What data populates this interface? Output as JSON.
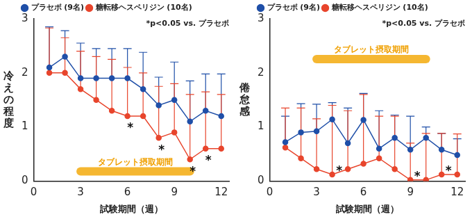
{
  "chart_data": [
    {
      "type": "line",
      "y_label": "冷えの程度",
      "x_label": "試験期間（週）",
      "note": "*p<0.05 vs. プラセボ",
      "x": [
        1,
        2,
        3,
        4,
        5,
        6,
        7,
        8,
        9,
        10,
        11,
        12
      ],
      "xlim": [
        0,
        12.5
      ],
      "xticks": [
        0,
        3,
        6,
        9,
        12
      ],
      "ylim": [
        0,
        3
      ],
      "yticks": [
        0,
        1,
        2,
        3
      ],
      "grid": false,
      "legend": "top-left",
      "series": [
        {
          "name": "プラセボ (9名)",
          "color": "#1f4fa8",
          "marker": "circle",
          "values": [
            2.1,
            2.3,
            1.9,
            1.9,
            1.9,
            1.9,
            1.7,
            1.4,
            1.5,
            1.1,
            1.3,
            1.2
          ],
          "error_plus": [
            0.75,
            0.48,
            0.65,
            0.55,
            0.55,
            0.55,
            0.68,
            0.52,
            0.7,
            0.75,
            0.68,
            0.78
          ]
        },
        {
          "name": "糖転移ヘスペリジン (10名)",
          "color": "#e8452c",
          "marker": "circle",
          "values": [
            2.0,
            2.0,
            1.7,
            1.5,
            1.3,
            1.2,
            1.2,
            0.8,
            0.9,
            0.4,
            0.6,
            0.6
          ],
          "error_plus": [
            0.83,
            0.65,
            0.7,
            0.8,
            0.95,
            0.9,
            0.8,
            0.95,
            0.9,
            1.2,
            1.05,
            1.0
          ]
        }
      ],
      "significance": {
        "text": "*",
        "x": [
          6,
          8,
          10,
          11
        ]
      },
      "period": {
        "label": "タブレット摂取期間",
        "start": 3,
        "end": 10
      }
    },
    {
      "type": "line",
      "y_label": "倦怠感",
      "x_label": "試験期間（週）",
      "note": "*p<0.05 vs. プラセボ",
      "x": [
        1,
        2,
        3,
        4,
        5,
        6,
        7,
        8,
        9,
        10,
        11,
        12
      ],
      "xlim": [
        0,
        12.5
      ],
      "xticks": [
        0,
        3,
        6,
        9,
        12
      ],
      "ylim": [
        0,
        3
      ],
      "yticks": [
        0,
        1,
        2,
        3
      ],
      "grid": false,
      "legend": "top-left",
      "series": [
        {
          "name": "プラセボ (9名)",
          "color": "#1f4fa8",
          "marker": "circle",
          "values": [
            0.72,
            0.9,
            0.92,
            1.14,
            0.7,
            1.13,
            0.6,
            0.8,
            0.58,
            0.8,
            0.58,
            0.48
          ],
          "error_plus": [
            0.48,
            0.53,
            0.5,
            0.31,
            0.65,
            0.49,
            0.7,
            0.42,
            0.62,
            0.2,
            0.3,
            0.3
          ]
        },
        {
          "name": "糖転移ヘスペリジン (10名)",
          "color": "#e8452c",
          "marker": "circle",
          "values": [
            0.62,
            0.42,
            0.22,
            0.12,
            0.22,
            0.32,
            0.42,
            0.22,
            0.02,
            0.02,
            0.12,
            0.12
          ],
          "error_plus": [
            0.73,
            0.93,
            0.93,
            1.28,
            1.08,
            1.28,
            0.78,
            0.98,
            0.68,
            0.86,
            0.76,
            0.75
          ]
        }
      ],
      "significance": {
        "text": "*",
        "x": [
          4,
          9,
          11
        ]
      },
      "period": {
        "label": "タブレット摂取期間",
        "start": 3,
        "end": 10
      }
    }
  ]
}
